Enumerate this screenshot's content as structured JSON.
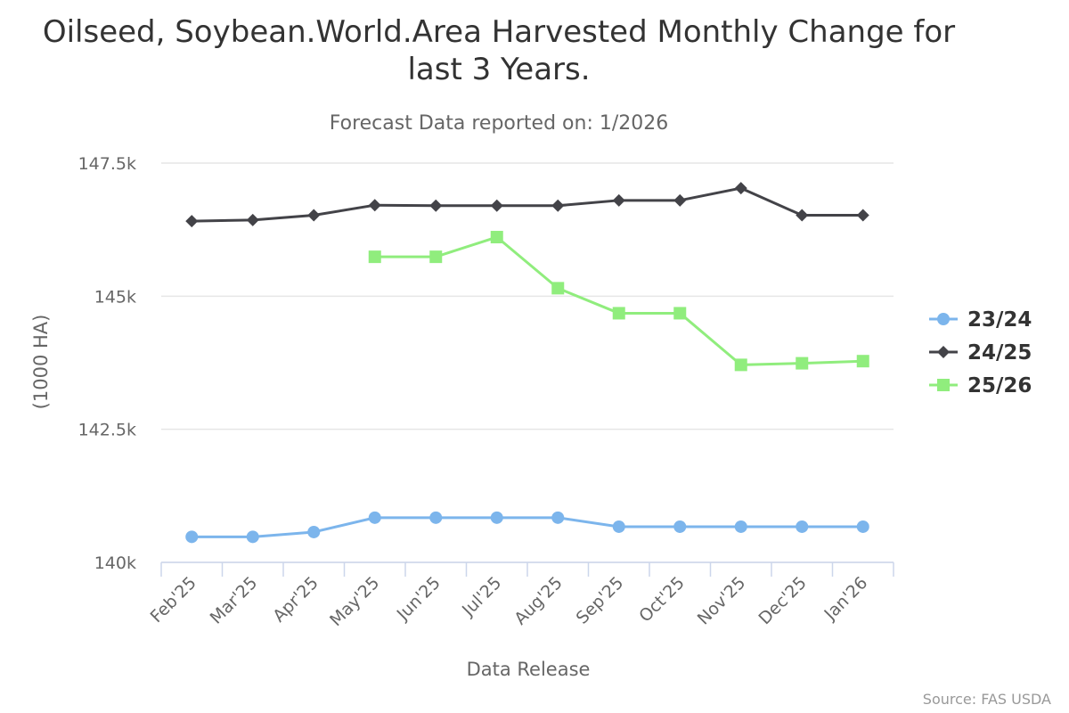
{
  "chart_data": {
    "type": "line",
    "title_lines": [
      "Oilseed, Soybean.World.Area Harvested Monthly Change for",
      "last 3 Years."
    ],
    "subtitle": "Forecast Data reported on: 1/2026",
    "xlabel": "Data Release",
    "ylabel": "(1000 HA)",
    "credit": "Source: FAS USDA",
    "categories": [
      "Feb'25",
      "Mar'25",
      "Apr'25",
      "May'25",
      "Jun'25",
      "Jul'25",
      "Aug'25",
      "Sep'25",
      "Oct'25",
      "Nov'25",
      "Dec'25",
      "Jan'26"
    ],
    "ylim": [
      140000,
      147500
    ],
    "yticks": [
      140000,
      142500,
      145000,
      147500
    ],
    "ytick_labels": [
      "140k",
      "142.5k",
      "145k",
      "147.5k"
    ],
    "grid": true,
    "legend_position": "right",
    "series": [
      {
        "name": "23/24",
        "color": "#7cb5ec",
        "marker": "circle",
        "values": [
          140480,
          140480,
          140570,
          140840,
          140840,
          140840,
          140840,
          140670,
          140670,
          140670,
          140670,
          140670
        ]
      },
      {
        "name": "24/25",
        "color": "#434348",
        "marker": "diamond",
        "values": [
          146410,
          146430,
          146520,
          146710,
          146700,
          146700,
          146700,
          146800,
          146800,
          147030,
          146520,
          146520
        ]
      },
      {
        "name": "25/26",
        "color": "#90ed7d",
        "marker": "square",
        "values": [
          null,
          null,
          null,
          145740,
          145740,
          146110,
          145150,
          144680,
          144680,
          143710,
          143740,
          143780
        ]
      }
    ]
  }
}
